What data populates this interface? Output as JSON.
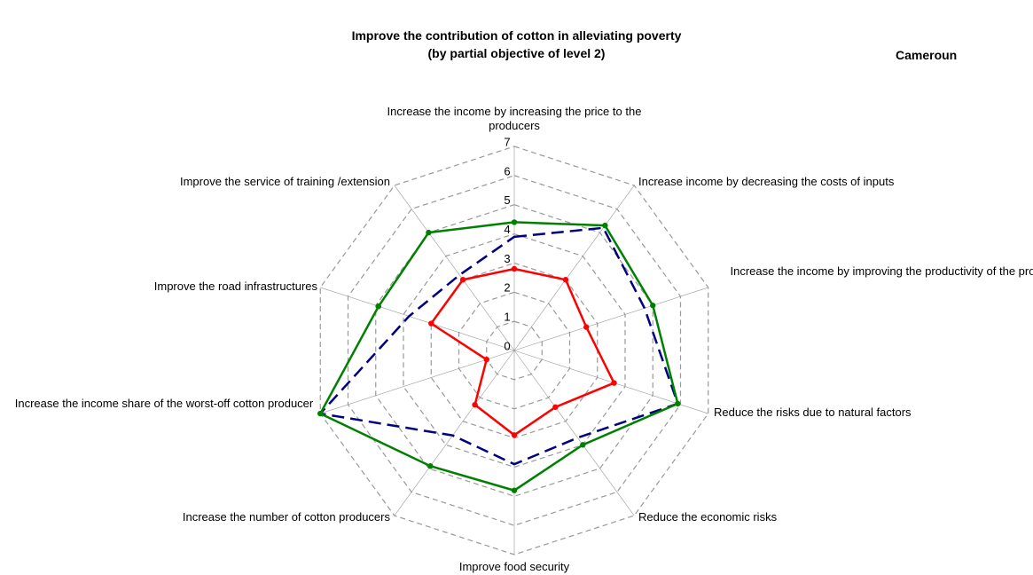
{
  "chart_data": {
    "type": "radar",
    "title": [
      "Improve the contribution of cotton in alleviating poverty",
      "(by partial objective of level 2)"
    ],
    "subtitle": "Cameroun",
    "categories": [
      "Increase the income by increasing the price to the producers",
      "Increase income by decreasing the costs of inputs",
      "Increase the income by improving the productivity of the producers",
      "Reduce the risks due to natural factors",
      "Reduce the economic risks",
      "Improve food security",
      "Increase the number of cotton producers",
      "Increase the income share of the worst-off cotton producer",
      "Improve the road infrastructures",
      "Improve the service of training /extension"
    ],
    "series": [
      {
        "color": "#ff0000",
        "style": "solid",
        "markers": true,
        "values": [
          2.8,
          3.0,
          2.6,
          3.6,
          2.4,
          2.9,
          2.3,
          1.0,
          3.0,
          3.0
        ]
      },
      {
        "color": "#000080",
        "style": "dashed",
        "markers": false,
        "values": [
          3.9,
          5.2,
          4.7,
          5.9,
          3.7,
          3.9,
          3.6,
          7.0,
          3.8,
          3.2
        ]
      },
      {
        "color": "#008000",
        "style": "solid",
        "markers": true,
        "values": [
          4.4,
          5.3,
          5.0,
          5.9,
          4.0,
          4.8,
          4.9,
          7.0,
          4.9,
          5.0
        ]
      }
    ],
    "rlim": [
      0,
      7
    ],
    "rticks": [
      0,
      1,
      2,
      3,
      4,
      5,
      6,
      7
    ],
    "grid": true
  }
}
